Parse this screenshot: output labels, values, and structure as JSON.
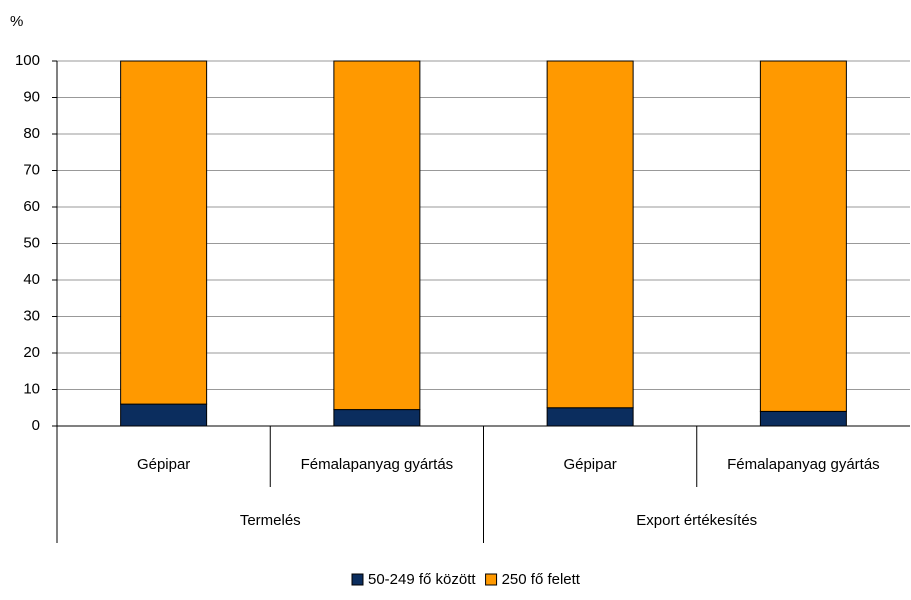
{
  "chart_data": {
    "type": "stacked_bar",
    "y_label": "%",
    "groups": [
      {
        "name": "Termelés",
        "categories": [
          "Gépipar",
          "Fémalapanyag gyártás"
        ]
      },
      {
        "name": "Export értékesítés",
        "categories": [
          "Gépipar",
          "Fémalapanyag gyártás"
        ]
      }
    ],
    "series": [
      {
        "name": "50-249 fő között",
        "color": "#0b2d5e",
        "values": [
          6,
          4.5,
          5,
          4
        ]
      },
      {
        "name": "250 fő felett",
        "color": "#ff9900",
        "values": [
          94,
          95.5,
          95,
          96
        ]
      }
    ],
    "ylim": [
      0,
      100
    ],
    "yticks": [
      0,
      10,
      20,
      30,
      40,
      50,
      60,
      70,
      80,
      90,
      100
    ],
    "grid": true,
    "legend": "bottom"
  }
}
